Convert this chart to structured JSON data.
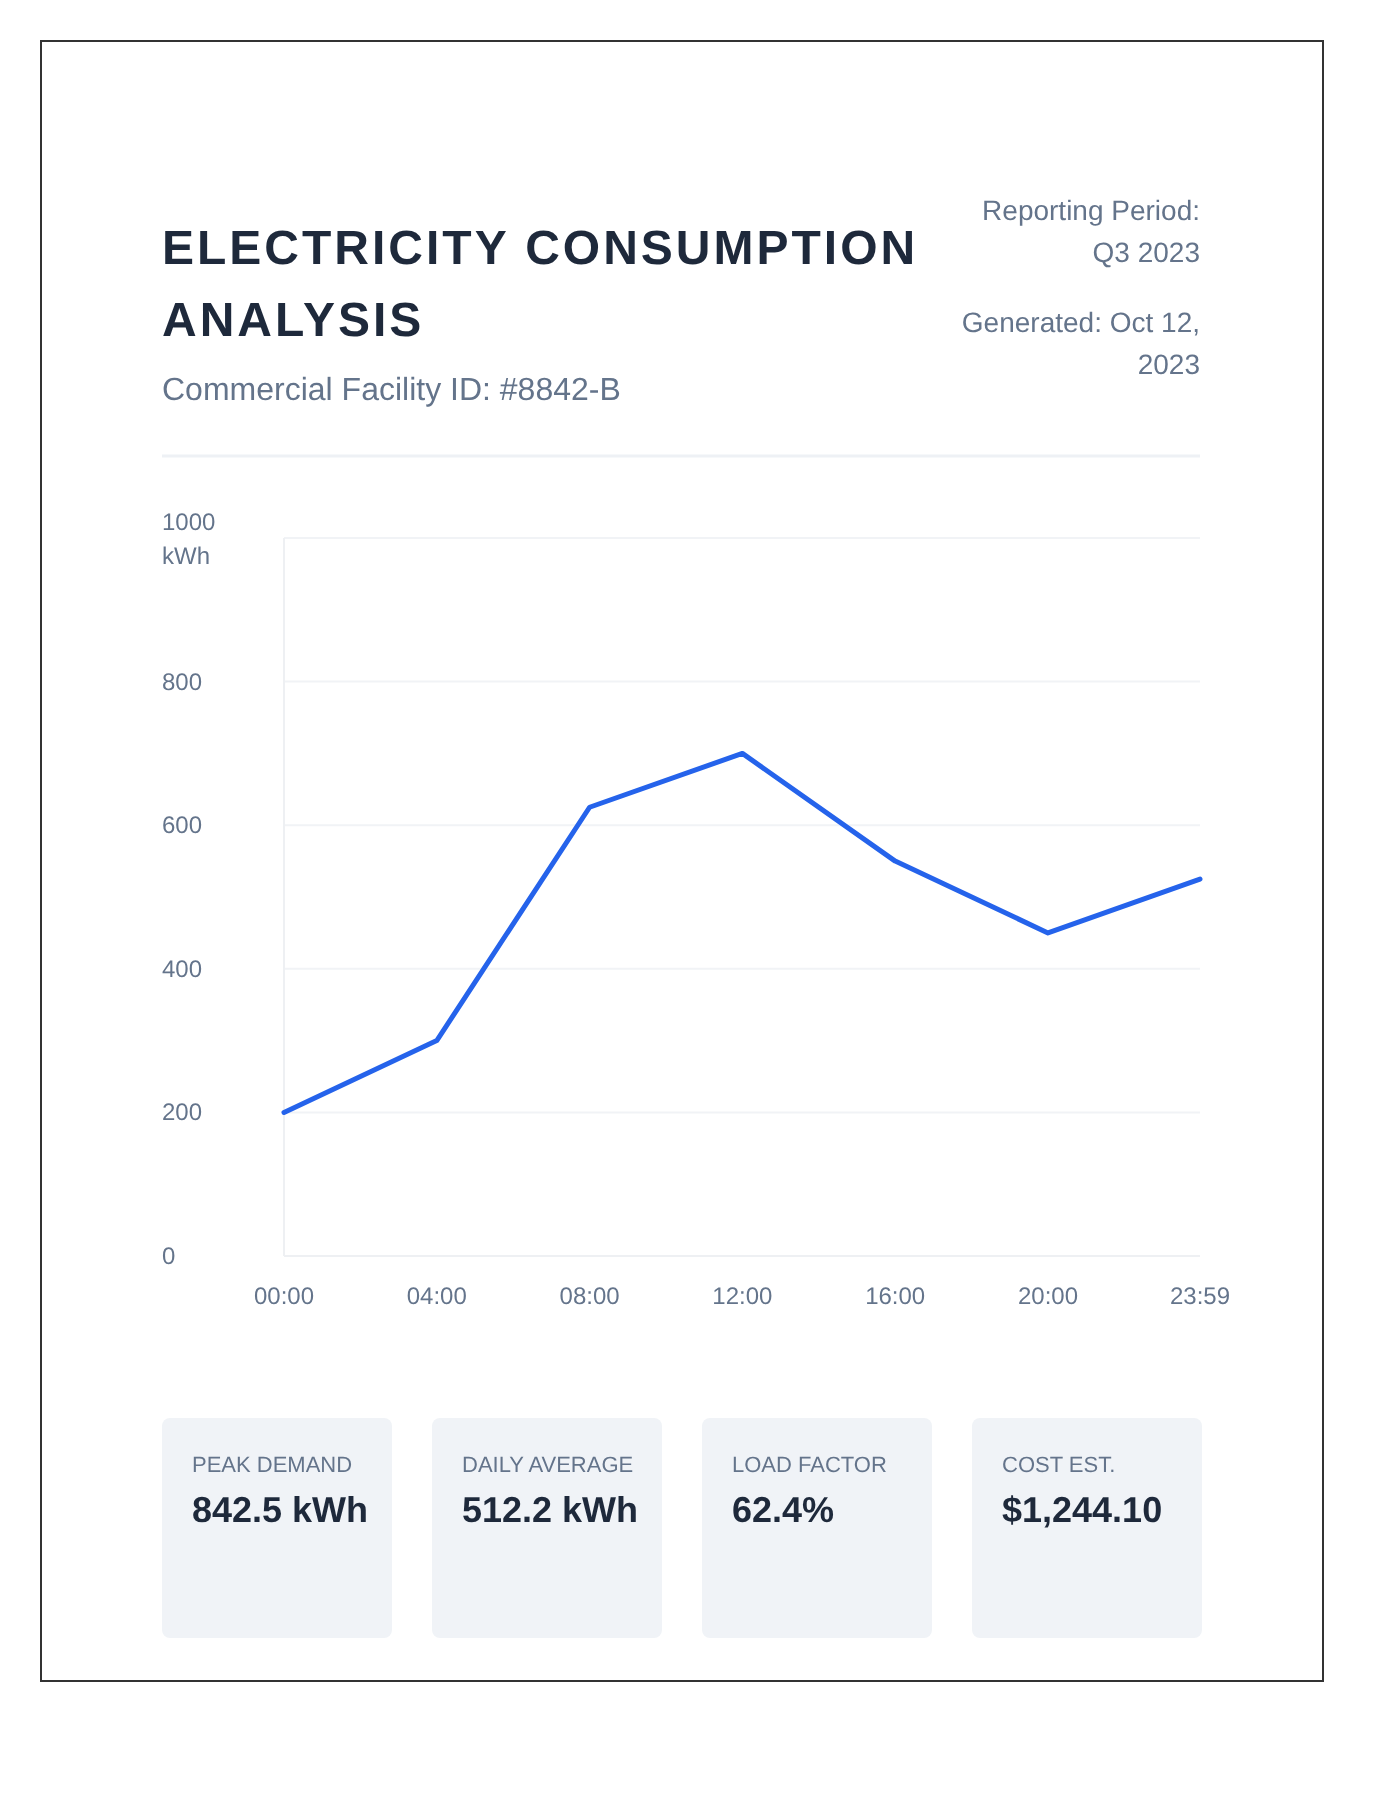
{
  "chart_data": [
    {
      "type": "line",
      "title": "ELECTRICITY CONSUMPTION ANALYSIS",
      "subtitle": "Commercial Facility ID: #8842-B",
      "annotations": [
        "Reporting Period: Q3 2023",
        "Generated: Oct 12, 2023"
      ],
      "x": [
        0,
        4,
        8,
        12,
        16,
        20,
        23.98
      ],
      "series": [
        {
          "color": "#2563eb",
          "values": [
            200,
            300,
            625,
            700,
            550,
            450,
            525
          ]
        }
      ],
      "xlim": [
        0,
        23.98
      ],
      "xticks": [
        {
          "value": 0,
          "label": "00:00"
        },
        {
          "value": 4,
          "label": "04:00"
        },
        {
          "value": 8,
          "label": "08:00"
        },
        {
          "value": 12,
          "label": "12:00"
        },
        {
          "value": 16,
          "label": "16:00"
        },
        {
          "value": 20,
          "label": "20:00"
        },
        {
          "value": 23.98,
          "label": "23:59"
        }
      ],
      "ylim": [
        0,
        1000
      ],
      "yticks": [
        0,
        200,
        400,
        600,
        800,
        {
          "value": 1000,
          "label": "1000 kWh"
        }
      ],
      "grid": "y",
      "line_style": "solid"
    },
    {
      "type": "other",
      "annotations": [
        "PEAK DEMAND",
        "842.5 kWh",
        "DAILY AVERAGE",
        "512.2 kWh",
        "LOAD FACTOR",
        "62.4%",
        "COST EST.",
        "$1,244.10"
      ]
    }
  ]
}
